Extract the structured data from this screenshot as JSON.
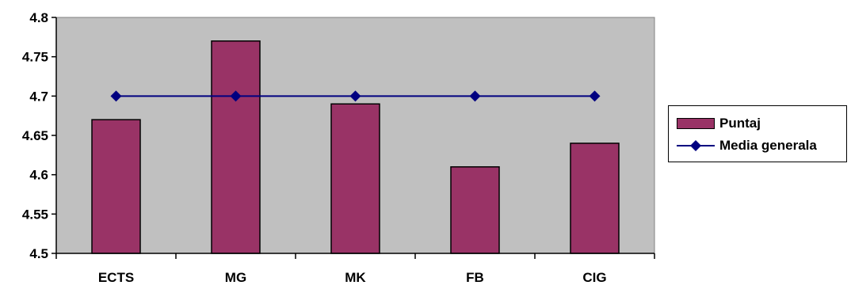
{
  "chart_data": {
    "type": "bar",
    "categories": [
      "ECTS",
      "MG",
      "MK",
      "FB",
      "CIG"
    ],
    "series": [
      {
        "name": "Puntaj",
        "kind": "bar",
        "color": "#993366",
        "values": [
          4.67,
          4.77,
          4.69,
          4.61,
          4.64
        ]
      },
      {
        "name": "Media generala",
        "kind": "line",
        "color": "#000080",
        "marker": "diamond",
        "values": [
          4.7,
          4.7,
          4.7,
          4.7,
          4.7
        ]
      }
    ],
    "ylim": [
      4.5,
      4.8
    ],
    "yticks": [
      "4.5",
      "4.55",
      "4.6",
      "4.65",
      "4.7",
      "4.75",
      "4.8"
    ],
    "plot_background": "#c0c0c0",
    "grid": false,
    "legend_position": "right"
  }
}
